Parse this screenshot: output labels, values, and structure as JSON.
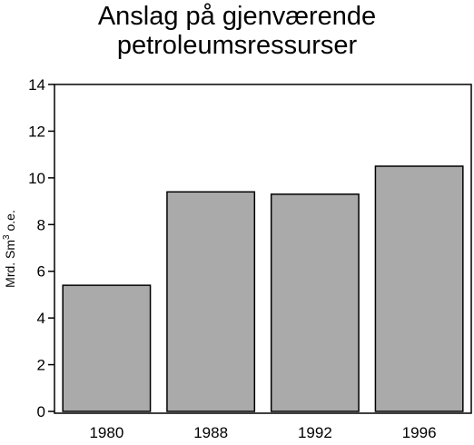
{
  "chart_data": {
    "type": "bar",
    "title_lines": [
      "Anslag på gjenværende",
      "petroleumsressurser"
    ],
    "ylabel": {
      "base": "Mrd. Sm",
      "sup": "3",
      "suffix": " o.e."
    },
    "xlabel": "",
    "categories": [
      "1980",
      "1988",
      "1992",
      "1996"
    ],
    "values": [
      5.4,
      9.4,
      9.3,
      10.5
    ],
    "ylim": [
      0,
      14
    ],
    "yticks": [
      0,
      2,
      4,
      6,
      8,
      10,
      12,
      14
    ],
    "grid": false,
    "legend": "none",
    "bar_color": "#aaaaaa",
    "edge_color": "#000000"
  }
}
